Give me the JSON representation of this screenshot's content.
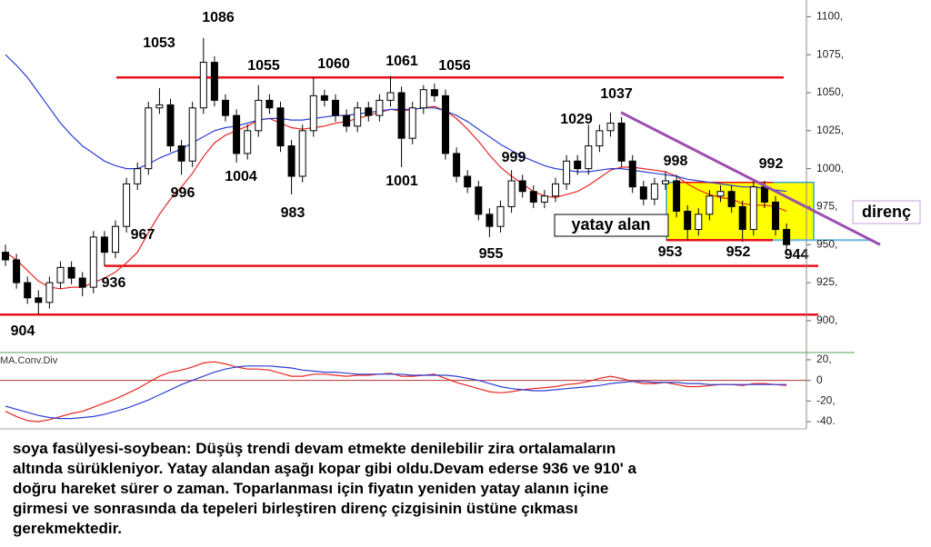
{
  "chart_data": [
    {
      "type": "candlestick",
      "open": [
        945,
        940,
        925,
        915,
        912,
        925,
        935,
        928,
        922,
        955,
        945,
        962,
        990,
        1000,
        1040,
        1042,
        1015,
        1005,
        1040,
        1070,
        1045,
        1035,
        1010,
        1025,
        1045,
        1040,
        1015,
        995,
        1025,
        1048,
        1045,
        1035,
        1028,
        1040,
        1035,
        1045,
        1050,
        1020,
        1040,
        1052,
        1048,
        1010,
        995,
        988,
        970,
        962,
        975,
        992,
        985,
        978,
        982,
        990,
        1005,
        1000,
        1015,
        1025,
        1030,
        1005,
        988,
        980,
        990,
        992,
        972,
        960,
        970,
        982,
        985,
        975,
        960,
        988,
        978,
        960
      ],
      "high": [
        950,
        944,
        929,
        920,
        929,
        939,
        939,
        932,
        959,
        959,
        966,
        994,
        1004,
        1044,
        1053,
        1046,
        1019,
        1044,
        1086,
        1074,
        1049,
        1039,
        1029,
        1055,
        1049,
        1044,
        1019,
        1029,
        1060,
        1052,
        1049,
        1039,
        1044,
        1044,
        1049,
        1061,
        1054,
        1044,
        1055,
        1056,
        1052,
        1014,
        999,
        992,
        974,
        979,
        999,
        996,
        989,
        986,
        994,
        1009,
        1009,
        1029,
        1029,
        1037,
        1034,
        1009,
        992,
        994,
        998,
        996,
        976,
        974,
        986,
        989,
        989,
        979,
        992,
        992,
        982,
        964
      ],
      "low": [
        936,
        921,
        911,
        904,
        908,
        921,
        924,
        916,
        918,
        936,
        941,
        958,
        986,
        996,
        1036,
        1011,
        996,
        1001,
        1036,
        1041,
        1031,
        1004,
        1006,
        1021,
        1036,
        1011,
        983,
        991,
        1021,
        1041,
        1031,
        1024,
        1024,
        1031,
        1031,
        1041,
        1001,
        1016,
        1036,
        1044,
        1006,
        991,
        984,
        966,
        955,
        958,
        971,
        981,
        974,
        974,
        978,
        986,
        996,
        996,
        1011,
        1021,
        1001,
        984,
        976,
        976,
        986,
        968,
        953,
        956,
        966,
        978,
        971,
        952,
        956,
        974,
        956,
        944
      ],
      "close": [
        940,
        925,
        915,
        912,
        925,
        935,
        928,
        922,
        955,
        945,
        962,
        990,
        1000,
        1040,
        1042,
        1015,
        1005,
        1040,
        1070,
        1045,
        1035,
        1010,
        1025,
        1045,
        1040,
        1015,
        995,
        1025,
        1048,
        1045,
        1035,
        1028,
        1040,
        1035,
        1045,
        1050,
        1020,
        1040,
        1052,
        1048,
        1010,
        995,
        988,
        970,
        962,
        975,
        992,
        985,
        978,
        982,
        990,
        1005,
        1000,
        1015,
        1025,
        1030,
        1005,
        988,
        980,
        990,
        992,
        972,
        960,
        970,
        982,
        985,
        975,
        960,
        988,
        978,
        960,
        950
      ],
      "up_color": "#ffffff",
      "down_color": "#000000",
      "moving_averages": [
        {
          "color": "#e8261f",
          "values": [
            945,
            940,
            933,
            926,
            922,
            921,
            922,
            922,
            925,
            928,
            932,
            938,
            945,
            958,
            970,
            980,
            988,
            997,
            1008,
            1017,
            1022,
            1025,
            1028,
            1032,
            1033,
            1030,
            1027,
            1026,
            1027,
            1028,
            1030,
            1031,
            1033,
            1035,
            1037,
            1039,
            1038,
            1039,
            1040,
            1041,
            1038,
            1033,
            1026,
            1018,
            1009,
            1001,
            995,
            990,
            985,
            982,
            981,
            983,
            985,
            989,
            994,
            999,
            1001,
            1001,
            1000,
            999,
            998,
            995,
            990,
            986,
            983,
            981,
            980,
            977,
            976,
            976,
            975,
            972
          ]
        },
        {
          "color": "#2b3fd6",
          "values": [
            1075,
            1068,
            1060,
            1050,
            1040,
            1030,
            1022,
            1015,
            1010,
            1005,
            1002,
            1000,
            1000,
            1003,
            1007,
            1010,
            1013,
            1017,
            1021,
            1025,
            1027,
            1028,
            1030,
            1032,
            1033,
            1033,
            1032,
            1032,
            1033,
            1034,
            1035,
            1035,
            1036,
            1037,
            1038,
            1039,
            1039,
            1039,
            1040,
            1040,
            1038,
            1035,
            1031,
            1026,
            1021,
            1016,
            1012,
            1008,
            1005,
            1002,
            1000,
            999,
            998,
            998,
            999,
            1000,
            1000,
            999,
            998,
            997,
            996,
            995,
            993,
            992,
            991,
            990,
            989,
            988,
            988,
            987,
            986,
            985
          ]
        }
      ],
      "ylim": [
        879,
        1111
      ],
      "yticks": [
        {
          "value": 900,
          "label": "900,"
        },
        {
          "value": 925,
          "label": "925,"
        },
        {
          "value": 950,
          "label": "950,"
        },
        {
          "value": 975,
          "label": "975,"
        },
        {
          "value": 1000,
          "label": "1000,"
        },
        {
          "value": 1025,
          "label": "1025,"
        },
        {
          "value": 1050,
          "label": "1050,"
        },
        {
          "value": 1075,
          "label": "1075,"
        },
        {
          "value": 1100,
          "label": "1100,"
        }
      ],
      "hlines": [
        1060,
        936,
        904
      ],
      "hline_color": "#e8101a",
      "range_box": {
        "ylim": [
          953,
          991
        ],
        "color": "#ffff00",
        "label": "yatay alan"
      },
      "resistance_line": {
        "values": [
          1037,
          950
        ],
        "color": "#9b4fb0",
        "label": "direnç"
      },
      "annotations": [
        "1086",
        "1053",
        "1055",
        "1060",
        "1061",
        "1056",
        "1037",
        "1029",
        "999",
        "998",
        "992",
        "1004",
        "996",
        "1001",
        "983",
        "967",
        "955",
        "953",
        "952",
        "944",
        "936",
        "904"
      ]
    },
    {
      "type": "line",
      "title": "MA.Conv.Div",
      "series": [
        {
          "color": "#e8261f",
          "values": [
            -30,
            -35,
            -39,
            -40,
            -38,
            -35,
            -32,
            -30,
            -26,
            -22,
            -18,
            -13,
            -8,
            -2,
            4,
            8,
            10,
            13,
            17,
            18,
            16,
            13,
            11,
            11,
            10,
            7,
            4,
            4,
            6,
            6,
            5,
            4,
            5,
            5,
            6,
            7,
            4,
            4,
            5,
            6,
            2,
            -2,
            -5,
            -8,
            -11,
            -12,
            -11,
            -9,
            -8,
            -7,
            -6,
            -4,
            -3,
            -1,
            2,
            4,
            2,
            -1,
            -3,
            -3,
            -2,
            -4,
            -6,
            -6,
            -5,
            -4,
            -4,
            -5,
            -3,
            -3,
            -4,
            -5
          ]
        },
        {
          "color": "#2b3fd6",
          "values": [
            -25,
            -28,
            -31,
            -34,
            -36,
            -37,
            -37,
            -36,
            -35,
            -33,
            -30,
            -27,
            -23,
            -19,
            -14,
            -9,
            -4,
            0,
            4,
            8,
            11,
            13,
            14,
            14,
            14,
            13,
            12,
            10,
            9,
            8,
            8,
            7,
            6,
            6,
            6,
            6,
            6,
            5,
            5,
            5,
            5,
            4,
            2,
            0,
            -3,
            -6,
            -8,
            -9,
            -10,
            -10,
            -9,
            -8,
            -7,
            -6,
            -5,
            -3,
            -2,
            -1,
            -1,
            -2,
            -2,
            -2,
            -3,
            -3,
            -4,
            -4,
            -4,
            -4,
            -4,
            -4,
            -4,
            -4
          ]
        }
      ],
      "ylim": [
        -47,
        27
      ],
      "yticks": [
        {
          "value": 20,
          "label": "20,"
        },
        0,
        {
          "value": -20,
          "label": "-20,"
        },
        {
          "value": -40,
          "label": "-40."
        }
      ],
      "zero_line": 0,
      "zero_color": "#b03030"
    }
  ],
  "text": {
    "lines": [
      "soya fasülyesi-soybean: Düşüş trendi devam etmekte denilebilir zira ortalamaların",
      "altında sürükleniyor. Yatay alandan aşağı kopar gibi oldu.Devam ederse 936 ve 910' a",
      "doğru hareket sürer o zaman. Toparlanması için fiyatın yeniden yatay alanın içine",
      "girmesi ve sonrasında da tepeleri birleştiren direnç çizgisinin üstüne çıkması",
      "gerekmektedir."
    ]
  }
}
